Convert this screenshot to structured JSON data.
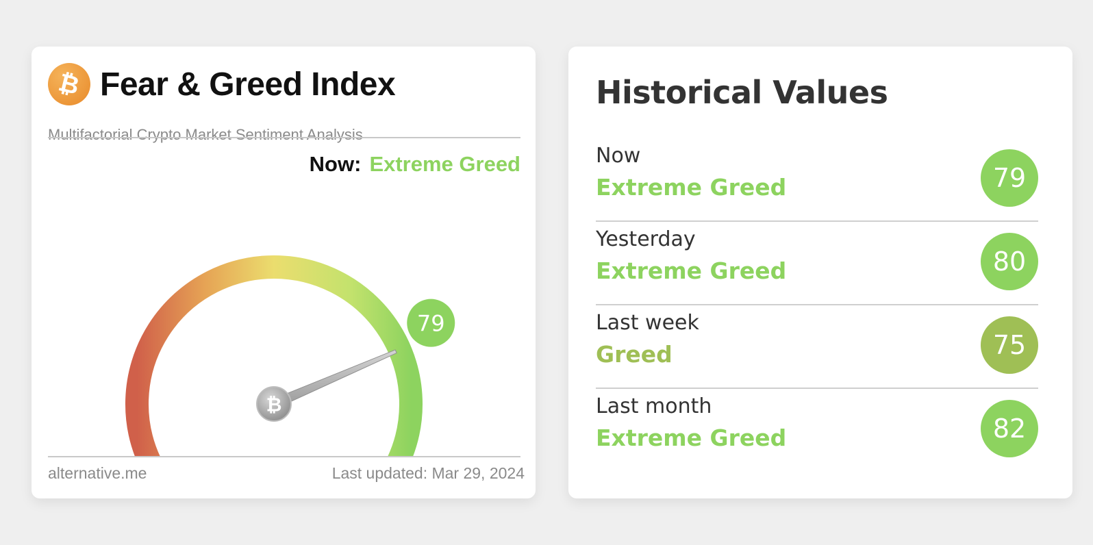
{
  "fear_greed_widget": {
    "title": "Fear & Greed Index",
    "subtitle": "Multifactorial Crypto Market Sentiment Analysis",
    "logo_symbol": "₿",
    "logo_icon": "bitcoin-icon",
    "now_label": "Now:",
    "now_classification": "Extreme Greed",
    "value": "79",
    "value_numeric": 79,
    "gauge_min": 0,
    "gauge_max": 100,
    "needle_symbol": "₿",
    "footer_source": "alternative.me",
    "footer_updated": "Last updated: Mar 29, 2024",
    "colors": {
      "extreme_greed": "#8dd35f",
      "greed": "#9fbf55",
      "logo_orange": "#eb952f"
    }
  },
  "historical_values": {
    "title": "Historical Values",
    "rows": [
      {
        "period": "Now",
        "classification": "Extreme Greed",
        "value": "79",
        "color": "#8dd35f"
      },
      {
        "period": "Yesterday",
        "classification": "Extreme Greed",
        "value": "80",
        "color": "#8dd35f"
      },
      {
        "period": "Last week",
        "classification": "Greed",
        "value": "75",
        "color": "#9fbf55"
      },
      {
        "period": "Last month",
        "classification": "Extreme Greed",
        "value": "82",
        "color": "#8dd35f"
      }
    ]
  }
}
